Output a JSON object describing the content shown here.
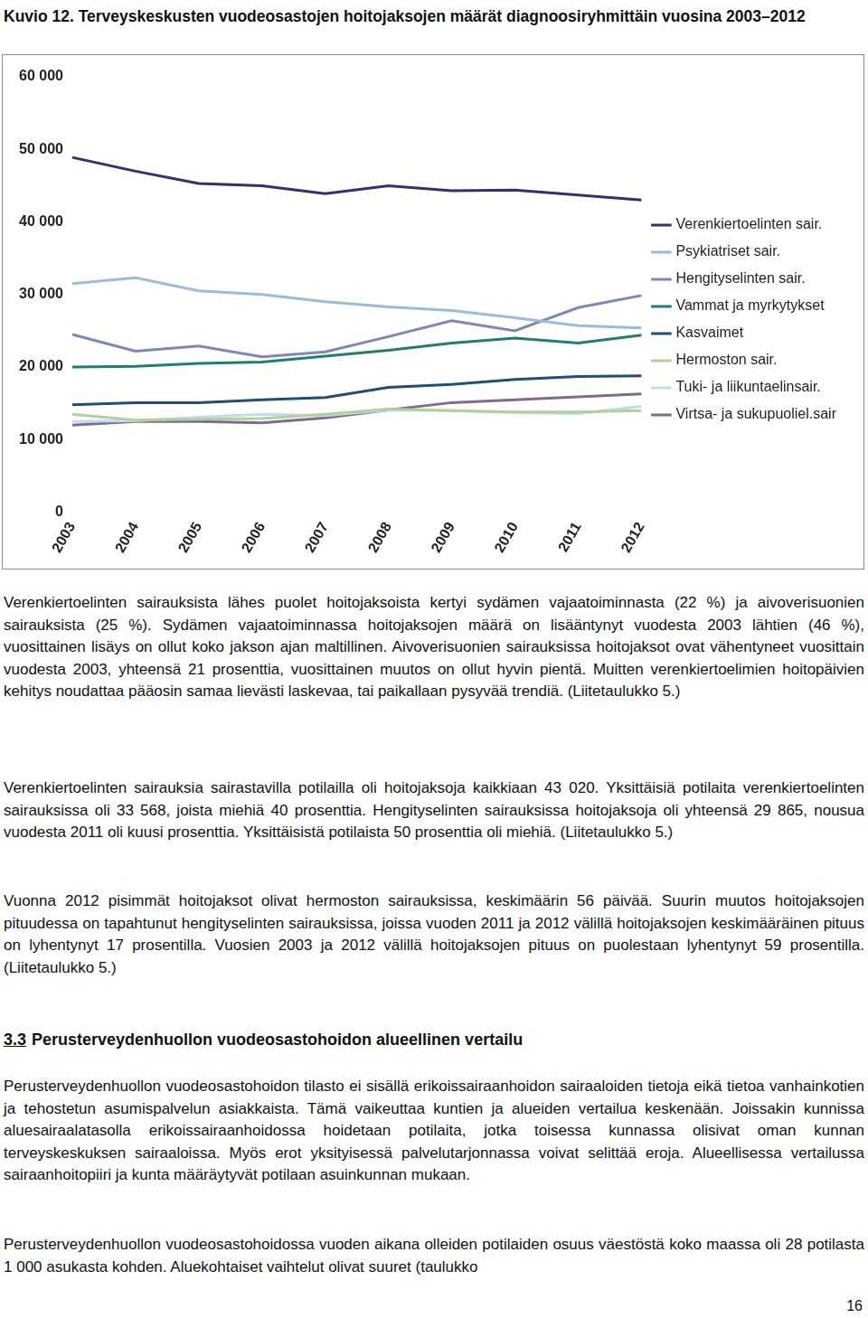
{
  "caption": "Kuvio 12. Terveyskeskusten vuodeosastojen hoitojaksojen määrät diagnoosiryhmittäin vuosina 2003–2012",
  "chart_data": {
    "type": "line",
    "categories": [
      "2003",
      "2004",
      "2005",
      "2006",
      "2007",
      "2008",
      "2009",
      "2010",
      "2011",
      "2012"
    ],
    "series": [
      {
        "name": "Verenkiertoelinten sair.",
        "color": "#3d2a73",
        "values": [
          48900,
          47000,
          45300,
          45000,
          43900,
          45000,
          44300,
          44400,
          43700,
          43020
        ]
      },
      {
        "name": "Psykiatriset sair.",
        "color": "#9bbbd9",
        "values": [
          31500,
          32300,
          30500,
          30000,
          29000,
          28300,
          27800,
          26800,
          25700,
          25400
        ]
      },
      {
        "name": "Hengityselinten sair.",
        "color": "#7f86b8",
        "values": [
          24500,
          22200,
          22900,
          21400,
          22100,
          24200,
          26400,
          25000,
          28200,
          29865
        ]
      },
      {
        "name": "Vammat ja myrkytykset",
        "color": "#1f7f6e",
        "values": [
          20000,
          20100,
          20500,
          20700,
          21500,
          22300,
          23300,
          24000,
          23300,
          24400
        ]
      },
      {
        "name": "Kasvaimet",
        "color": "#1f4e79",
        "values": [
          14800,
          15100,
          15100,
          15500,
          15800,
          17200,
          17600,
          18300,
          18700,
          18800
        ]
      },
      {
        "name": "Hermoston sair.",
        "color": "#b5cf9b",
        "values": [
          13500,
          12700,
          12800,
          12900,
          13500,
          14200,
          14000,
          13800,
          13800,
          14000
        ]
      },
      {
        "name": "Tuki- ja liikuntaelinsair.",
        "color": "#bcdcef",
        "values": [
          12500,
          12600,
          13100,
          13500,
          13300,
          14100,
          14000,
          13700,
          13600,
          14600
        ]
      },
      {
        "name": "Virtsa- ja sukupuoliel.sair",
        "color": "#7e6b8f",
        "values": [
          12000,
          12500,
          12500,
          12300,
          13000,
          14100,
          15100,
          15500,
          15900,
          16300
        ]
      }
    ],
    "ylim": [
      0,
      60000
    ],
    "yticks": [
      0,
      {
        "value": 10000,
        "label": "10 000"
      },
      {
        "value": 20000,
        "label": "20 000"
      },
      {
        "value": 30000,
        "label": "30 000"
      },
      {
        "value": 40000,
        "label": "40 000"
      },
      {
        "value": 50000,
        "label": "50 000"
      },
      {
        "value": 60000,
        "label": "60 000"
      }
    ],
    "grid": false,
    "legend": "right"
  },
  "body": [
    "Verenkiertoelinten sairauksista lähes puolet hoitojaksoista kertyi sydämen vajaatoiminnasta (22 %) ja aivoverisuonien sairauksista (25 %). Sydämen vajaatoiminnassa hoitojaksojen määrä on lisääntynyt vuodesta 2003 lähtien (46 %), vuosittainen lisäys on ollut koko jakson ajan maltillinen. Aivoverisuonien sairauksissa hoitojaksot ovat vähentyneet vuosittain vuodesta 2003, yhteensä 21 prosenttia, vuosittainen muutos on ollut hyvin pientä. Muitten verenkiertoelimien hoitopäivien kehitys noudattaa pääosin samaa lievästi laskevaa, tai paikallaan pysyvää trendiä. (Liitetaulukko 5.)",
    "Verenkiertoelinten sairauksia sairastavilla potilailla oli hoitojaksoja kaikkiaan 43 020. Yksittäisiä potilaita verenkiertoelinten sairauksissa oli 33 568, joista miehiä 40 prosenttia. Hengityselinten sairauksissa hoitojaksoja oli yhteensä 29 865, nousua vuodesta 2011 oli kuusi prosenttia. Yksittäisistä potilaista 50 prosenttia oli miehiä. (Liitetaulukko 5.)",
    "Vuonna 2012 pisimmät hoitojaksot olivat hermoston sairauksissa, keskimäärin 56 päivää. Suurin muutos hoitojaksojen pituudessa on tapahtunut hengityselinten sairauksissa, joissa vuoden 2011 ja 2012 välillä hoitojaksojen keskimääräinen pituus on lyhentynyt 17 prosentilla. Vuosien 2003 ja 2012 välillä hoitojaksojen pituus on puolestaan lyhentynyt 59 prosentilla. (Liitetaulukko 5.)"
  ],
  "section": {
    "number": "3.3",
    "title": "Perusterveydenhuollon vuodeosastohoidon alueellinen vertailu"
  },
  "body2": [
    "Perusterveydenhuollon vuodeosastohoidon tilasto ei sisällä erikoissairaanhoidon sairaaloiden tietoja eikä tietoa vanhainkotien ja tehostetun asumispalvelun asiakkaista. Tämä vaikeuttaa kuntien ja alueiden vertailua keskenään. Joissakin kunnissa aluesairaalatasolla erikoissairaanhoidossa hoidetaan potilaita, jotka toisessa kunnassa olisivat oman kunnan terveyskeskuksen sairaaloissa. Myös erot yksityisessä palvelutarjonnassa voivat selittää eroja. Alueellisessa vertailussa sairaanhoitopiiri ja kunta määräytyvät potilaan asuinkunnan mukaan.",
    "Perusterveydenhuollon vuodeosastohoidossa vuoden aikana olleiden potilaiden osuus väestöstä koko maassa oli 28 potilasta 1 000 asukasta kohden. Aluekohtaiset vaihtelut olivat suuret (taulukko"
  ],
  "page_number": "16"
}
